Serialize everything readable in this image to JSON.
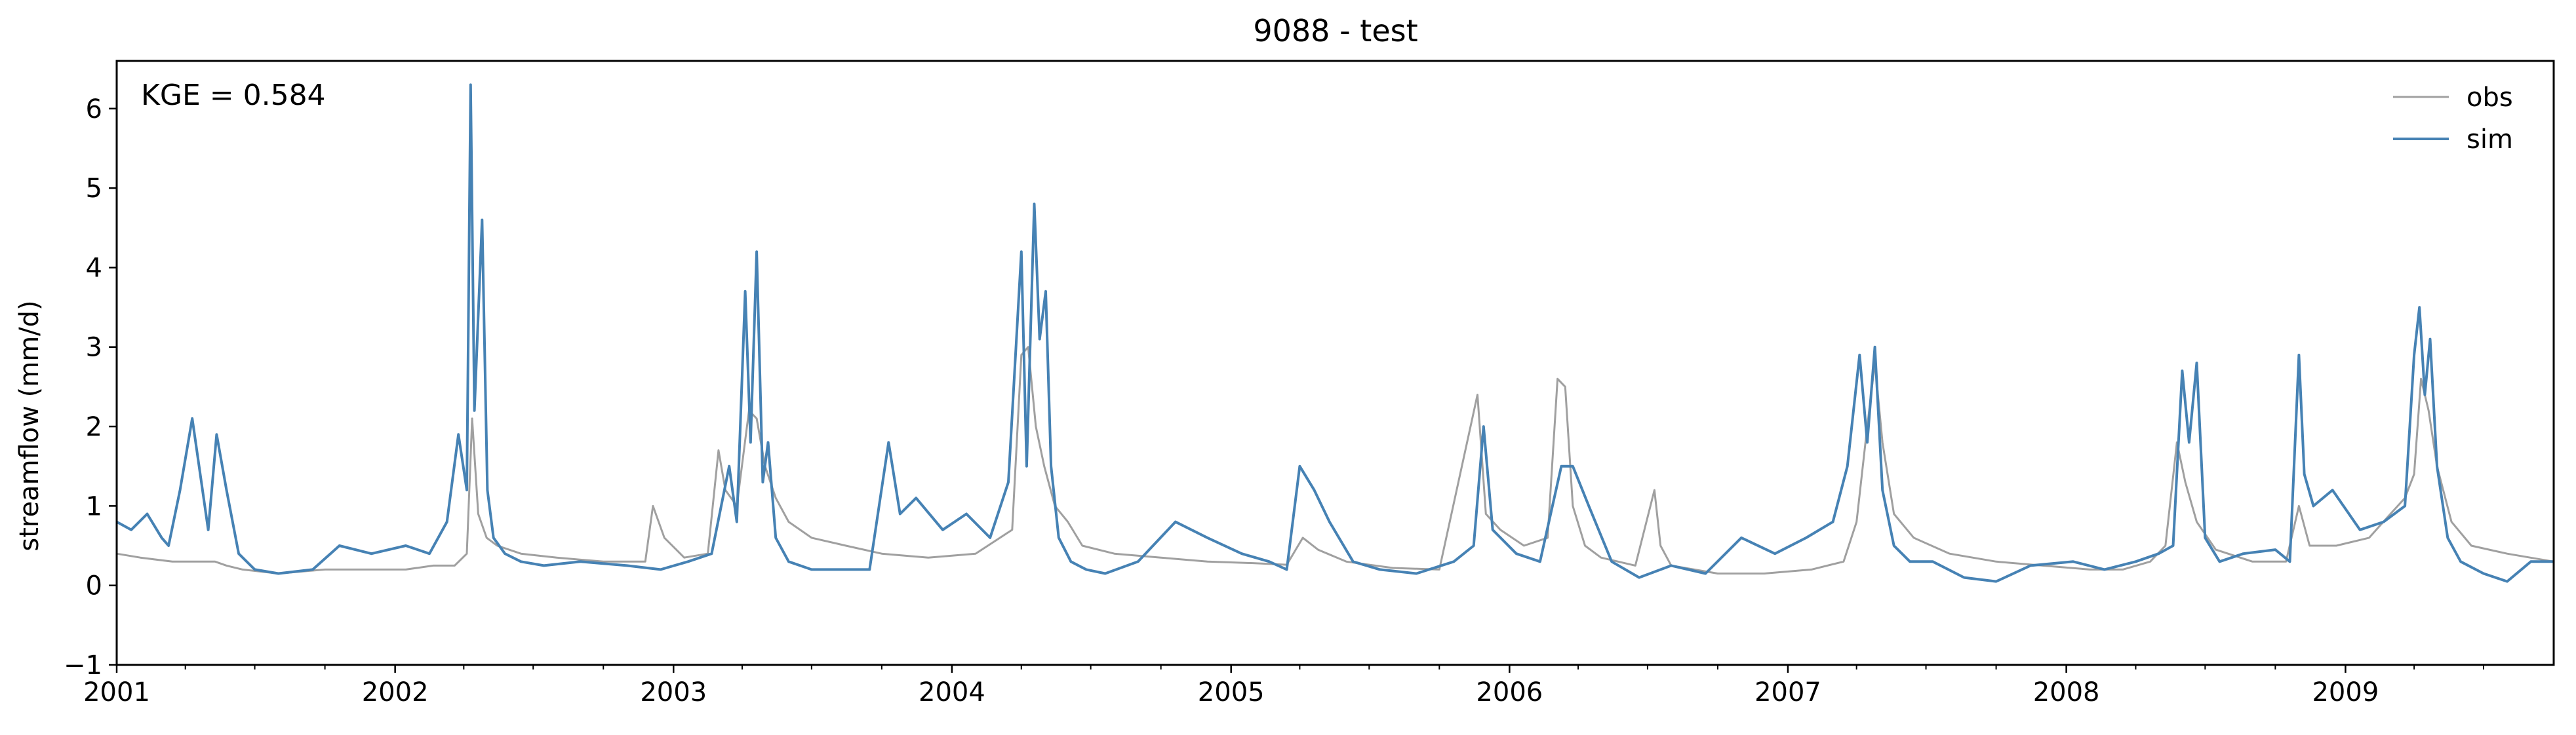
{
  "chart_data": {
    "type": "line",
    "title": "9088 - test",
    "xlabel": "",
    "ylabel": "streamflow (mm/d)",
    "annotation": "KGE = 0.584",
    "xlim": [
      "2001-01-01",
      "2009-10-01"
    ],
    "ylim": [
      -1,
      6.6
    ],
    "x_ticks": [
      "2001",
      "2002",
      "2003",
      "2004",
      "2005",
      "2006",
      "2007",
      "2008",
      "2009"
    ],
    "y_ticks": [
      "−1",
      "0",
      "1",
      "2",
      "3",
      "4",
      "5",
      "6"
    ],
    "grid": false,
    "legend": "top-right",
    "series": [
      {
        "name": "obs",
        "color": "#a0a0a0",
        "x": [
          "2001-01-01",
          "2001-02-01",
          "2001-03-15",
          "2001-04-15",
          "2001-05-10",
          "2001-05-25",
          "2001-06-15",
          "2001-08-01",
          "2001-10-01",
          "2001-12-01",
          "2002-01-15",
          "2002-02-20",
          "2002-03-20",
          "2002-04-05",
          "2002-04-12",
          "2002-04-20",
          "2002-05-01",
          "2002-05-15",
          "2002-06-15",
          "2002-08-01",
          "2002-10-01",
          "2002-11-25",
          "2002-12-05",
          "2002-12-20",
          "2003-01-15",
          "2003-02-15",
          "2003-03-01",
          "2003-03-10",
          "2003-03-25",
          "2003-04-10",
          "2003-04-20",
          "2003-05-01",
          "2003-05-15",
          "2003-06-01",
          "2003-07-01",
          "2003-08-15",
          "2003-10-01",
          "2003-12-01",
          "2004-02-01",
          "2004-03-20",
          "2004-04-01",
          "2004-04-10",
          "2004-04-20",
          "2004-05-01",
          "2004-05-15",
          "2004-06-01",
          "2004-06-20",
          "2004-08-01",
          "2004-10-01",
          "2004-12-01",
          "2005-02-01",
          "2005-03-15",
          "2005-04-05",
          "2005-04-25",
          "2005-06-01",
          "2005-08-01",
          "2005-10-01",
          "2005-11-20",
          "2005-12-01",
          "2005-12-20",
          "2006-01-20",
          "2006-02-20",
          "2006-03-05",
          "2006-03-15",
          "2006-03-25",
          "2006-04-10",
          "2006-05-01",
          "2006-06-15",
          "2006-07-10",
          "2006-07-18",
          "2006-08-01",
          "2006-10-01",
          "2006-12-01",
          "2007-02-01",
          "2007-03-15",
          "2007-04-01",
          "2007-04-15",
          "2007-04-25",
          "2007-05-05",
          "2007-05-20",
          "2007-06-15",
          "2007-08-01",
          "2007-10-01",
          "2007-12-01",
          "2008-02-01",
          "2008-03-15",
          "2008-04-20",
          "2008-05-10",
          "2008-05-25",
          "2008-06-05",
          "2008-06-20",
          "2008-07-15",
          "2008-09-01",
          "2008-10-15",
          "2008-11-01",
          "2008-11-15",
          "2008-12-20",
          "2009-02-01",
          "2009-03-01",
          "2009-03-20",
          "2009-04-01",
          "2009-04-10",
          "2009-04-20",
          "2009-05-01",
          "2009-05-20",
          "2009-06-15",
          "2009-08-01",
          "2009-10-01"
        ],
        "values": [
          0.4,
          0.35,
          0.3,
          0.3,
          0.3,
          0.25,
          0.2,
          0.15,
          0.2,
          0.2,
          0.2,
          0.25,
          0.25,
          0.4,
          2.1,
          0.9,
          0.6,
          0.5,
          0.4,
          0.35,
          0.3,
          0.3,
          1.0,
          0.6,
          0.35,
          0.4,
          1.7,
          1.2,
          1.0,
          2.2,
          2.1,
          1.5,
          1.1,
          0.8,
          0.6,
          0.5,
          0.4,
          0.35,
          0.4,
          0.7,
          2.9,
          3.0,
          2.0,
          1.5,
          1.0,
          0.8,
          0.5,
          0.4,
          0.35,
          0.3,
          0.28,
          0.26,
          0.6,
          0.45,
          0.3,
          0.22,
          0.2,
          2.4,
          0.9,
          0.7,
          0.5,
          0.6,
          2.6,
          2.5,
          1.0,
          0.5,
          0.35,
          0.25,
          1.2,
          0.5,
          0.25,
          0.15,
          0.15,
          0.2,
          0.3,
          0.8,
          2.0,
          2.8,
          1.8,
          0.9,
          0.6,
          0.4,
          0.3,
          0.25,
          0.2,
          0.2,
          0.3,
          0.5,
          1.8,
          1.3,
          0.8,
          0.45,
          0.3,
          0.3,
          1.0,
          0.5,
          0.5,
          0.6,
          0.9,
          1.1,
          1.4,
          2.6,
          2.2,
          1.5,
          0.8,
          0.5,
          0.4,
          0.3
        ]
      },
      {
        "name": "sim",
        "color": "#4682b4",
        "x": [
          "2001-01-01",
          "2001-01-20",
          "2001-02-10",
          "2001-03-01",
          "2001-03-10",
          "2001-03-25",
          "2001-04-10",
          "2001-05-01",
          "2001-05-12",
          "2001-05-25",
          "2001-06-10",
          "2001-07-01",
          "2001-08-01",
          "2001-09-15",
          "2001-10-20",
          "2001-12-01",
          "2002-01-15",
          "2002-02-15",
          "2002-03-10",
          "2002-03-25",
          "2002-04-05",
          "2002-04-10",
          "2002-04-15",
          "2002-04-25",
          "2002-05-02",
          "2002-05-10",
          "2002-05-25",
          "2002-06-15",
          "2002-07-15",
          "2002-09-01",
          "2002-11-01",
          "2002-12-15",
          "2003-01-20",
          "2003-02-20",
          "2003-03-15",
          "2003-03-25",
          "2003-04-05",
          "2003-04-12",
          "2003-04-20",
          "2003-04-28",
          "2003-05-05",
          "2003-05-15",
          "2003-06-01",
          "2003-07-01",
          "2003-08-01",
          "2003-09-15",
          "2003-10-10",
          "2003-10-25",
          "2003-11-15",
          "2003-12-20",
          "2004-01-20",
          "2004-02-20",
          "2004-03-15",
          "2004-04-01",
          "2004-04-08",
          "2004-04-18",
          "2004-04-25",
          "2004-05-03",
          "2004-05-10",
          "2004-05-20",
          "2004-06-05",
          "2004-06-25",
          "2004-07-20",
          "2004-09-01",
          "2004-10-20",
          "2004-12-01",
          "2005-01-15",
          "2005-02-20",
          "2005-03-15",
          "2005-04-01",
          "2005-04-20",
          "2005-05-10",
          "2005-06-10",
          "2005-07-15",
          "2005-09-01",
          "2005-10-20",
          "2005-11-15",
          "2005-11-28",
          "2005-12-10",
          "2006-01-10",
          "2006-02-10",
          "2006-03-10",
          "2006-03-25",
          "2006-04-15",
          "2006-05-15",
          "2006-06-20",
          "2006-08-01",
          "2006-09-15",
          "2006-11-01",
          "2006-12-15",
          "2007-01-25",
          "2007-03-01",
          "2007-03-20",
          "2007-04-05",
          "2007-04-15",
          "2007-04-25",
          "2007-05-05",
          "2007-05-20",
          "2007-06-10",
          "2007-07-10",
          "2007-08-20",
          "2007-10-01",
          "2007-11-15",
          "2008-01-10",
          "2008-02-20",
          "2008-04-01",
          "2008-05-01",
          "2008-05-20",
          "2008-06-01",
          "2008-06-10",
          "2008-06-20",
          "2008-07-01",
          "2008-07-20",
          "2008-08-20",
          "2008-10-01",
          "2008-10-20",
          "2008-11-01",
          "2008-11-08",
          "2008-11-20",
          "2008-12-15",
          "2009-01-20",
          "2009-02-20",
          "2009-03-20",
          "2009-04-01",
          "2009-04-08",
          "2009-04-15",
          "2009-04-22",
          "2009-05-01",
          "2009-05-15",
          "2009-06-01",
          "2009-07-01",
          "2009-08-01",
          "2009-09-01",
          "2009-10-01"
        ],
        "values": [
          0.8,
          0.7,
          0.9,
          0.6,
          0.5,
          1.2,
          2.1,
          0.7,
          1.9,
          1.2,
          0.4,
          0.2,
          0.15,
          0.2,
          0.5,
          0.4,
          0.5,
          0.4,
          0.8,
          1.9,
          1.2,
          6.3,
          2.2,
          4.6,
          1.2,
          0.6,
          0.4,
          0.3,
          0.25,
          0.3,
          0.25,
          0.2,
          0.3,
          0.4,
          1.5,
          0.8,
          3.7,
          1.8,
          4.2,
          1.3,
          1.8,
          0.6,
          0.3,
          0.2,
          0.2,
          0.2,
          1.8,
          0.9,
          1.1,
          0.7,
          0.9,
          0.6,
          1.3,
          4.2,
          1.5,
          4.8,
          3.1,
          3.7,
          1.5,
          0.6,
          0.3,
          0.2,
          0.15,
          0.3,
          0.8,
          0.6,
          0.4,
          0.3,
          0.2,
          1.5,
          1.2,
          0.8,
          0.3,
          0.2,
          0.15,
          0.3,
          0.5,
          2.0,
          0.7,
          0.4,
          0.3,
          1.5,
          1.5,
          1.0,
          0.3,
          0.1,
          0.25,
          0.15,
          0.6,
          0.4,
          0.6,
          0.8,
          1.5,
          2.9,
          1.8,
          3.0,
          1.2,
          0.5,
          0.3,
          0.3,
          0.1,
          0.05,
          0.25,
          0.3,
          0.2,
          0.3,
          0.4,
          0.5,
          2.7,
          1.8,
          2.8,
          0.6,
          0.3,
          0.4,
          0.45,
          0.3,
          2.9,
          1.4,
          1.0,
          1.2,
          0.7,
          0.8,
          1.0,
          2.9,
          3.5,
          2.4,
          3.1,
          1.5,
          0.6,
          0.3,
          0.15,
          0.05,
          0.3,
          0.3
        ]
      }
    ]
  }
}
